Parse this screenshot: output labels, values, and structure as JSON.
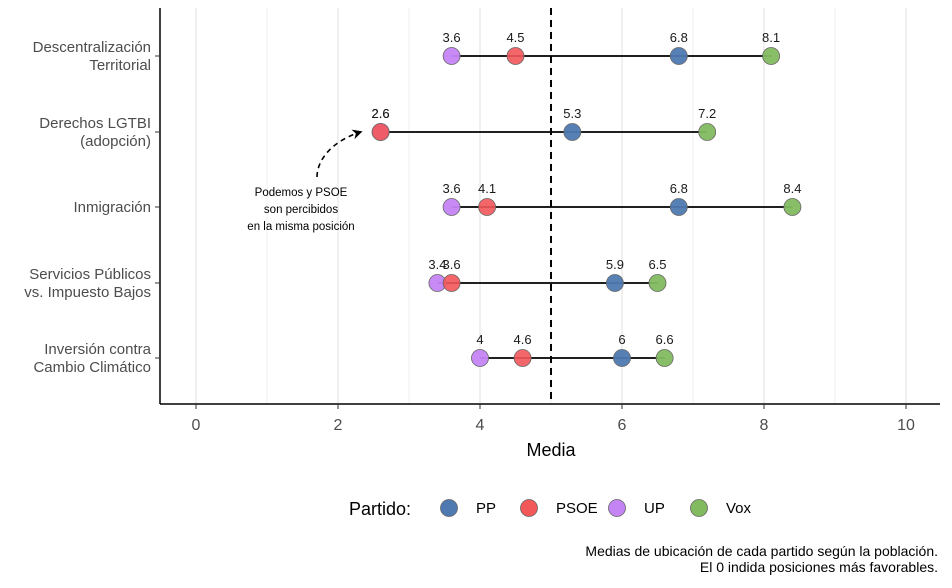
{
  "chart_data": {
    "type": "dot-range",
    "xlabel": "Media",
    "xlim": [
      -0.5,
      10.5
    ],
    "xticks": [
      "0",
      "2",
      "4",
      "6",
      "8",
      "10"
    ],
    "reference_line": {
      "x": 5,
      "style": "dashed"
    },
    "categories": [
      [
        "Descentralización",
        "Territorial"
      ],
      [
        "Derechos LGTBI",
        "(adopción)"
      ],
      [
        "Inmigración"
      ],
      [
        "Servicios Públicos",
        "vs. Impuesto Bajos"
      ],
      [
        "Inversión contra",
        "Cambio Climático"
      ]
    ],
    "series": [
      {
        "name": "PP",
        "color": "#4e79b1",
        "values": [
          6.8,
          5.3,
          6.8,
          5.9,
          6.0
        ],
        "labels": [
          "6.8",
          "5.3",
          "6.8",
          "5.9",
          "6"
        ]
      },
      {
        "name": "PSOE",
        "color": "#f2575a",
        "values": [
          4.5,
          2.6,
          4.1,
          3.6,
          4.6
        ],
        "labels": [
          "4.5",
          "2.6",
          "4.1",
          "3.6",
          "4.6"
        ]
      },
      {
        "name": "UP",
        "color": "#c584f4",
        "values": [
          3.6,
          2.6,
          3.6,
          3.4,
          4.0
        ],
        "labels": [
          "3.6",
          "2.6",
          "3.6",
          "3.4",
          "4"
        ]
      },
      {
        "name": "Vox",
        "color": "#82bb5f",
        "values": [
          8.1,
          7.2,
          8.4,
          6.5,
          6.6
        ],
        "labels": [
          "8.1",
          "7.2",
          "8.4",
          "6.5",
          "6.6"
        ]
      }
    ],
    "annotation": {
      "lines": [
        "Podemos y PSOE",
        "son percibidos",
        "en la misma posición"
      ],
      "target_category_index": 1,
      "target_x": 2.6
    },
    "legend": {
      "title": "Partido:",
      "position": "bottom"
    },
    "caption": [
      "Medias de ubicación de cada partido según la población.",
      "El 0 indida posiciones más favorables."
    ],
    "grid": {
      "vertical_major": true,
      "vertical_minor": true,
      "horizontal": false
    }
  }
}
